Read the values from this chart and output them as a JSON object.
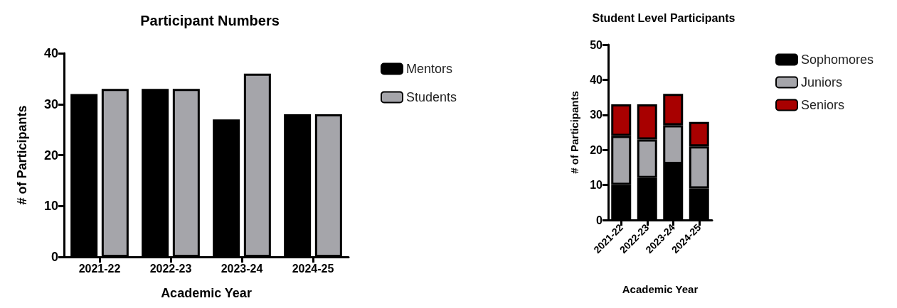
{
  "chart_data": [
    {
      "type": "bar",
      "title": "Participant Numbers",
      "xlabel": "Academic Year",
      "ylabel": "# of Participants",
      "categories": [
        "2021-22",
        "2022-23",
        "2023-24",
        "2024-25"
      ],
      "series": [
        {
          "name": "Mentors",
          "color": "#000000",
          "values": [
            32,
            33,
            27,
            28
          ]
        },
        {
          "name": "Students",
          "color": "#a5a5aa",
          "values": [
            33,
            33,
            36,
            28
          ]
        }
      ],
      "ylim": [
        0,
        40
      ],
      "yticks": [
        0,
        10,
        20,
        30,
        40
      ],
      "grid": false,
      "legend": "top right"
    },
    {
      "type": "bar",
      "title": "Student Level Participants",
      "xlabel": "Academic Year",
      "ylabel": "# of Participants",
      "categories": [
        "2021-22",
        "2022-23",
        "2023-24",
        "2024-25"
      ],
      "stacked": true,
      "series": [
        {
          "name": "Sophomores",
          "color": "#000000",
          "values": [
            10,
            12,
            16,
            9
          ]
        },
        {
          "name": "Juniors",
          "color": "#a5a5aa",
          "values": [
            14,
            11,
            11,
            12
          ]
        },
        {
          "name": "Seniors",
          "color": "#a80000",
          "values": [
            9,
            10,
            9,
            7
          ]
        }
      ],
      "ylim": [
        0,
        50
      ],
      "yticks": [
        0,
        10,
        20,
        30,
        40,
        50
      ],
      "grid": false,
      "legend": "top right"
    }
  ]
}
